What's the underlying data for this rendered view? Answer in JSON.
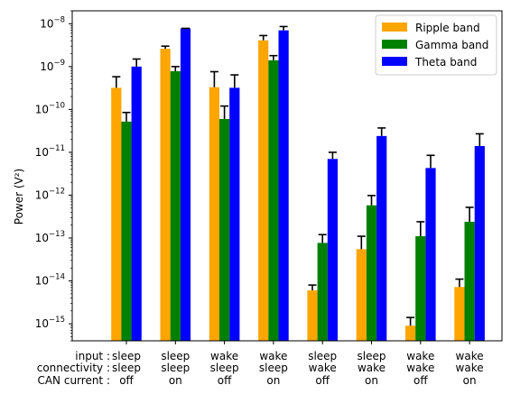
{
  "chart_data": {
    "type": "bar",
    "yscale": "log",
    "ylabel": "Power (V²)",
    "ylim": [
      4e-16,
      2e-08
    ],
    "yticks": [
      {
        "exp": -15,
        "label_base": "10",
        "label_exp": "−15"
      },
      {
        "exp": -14,
        "label_base": "10",
        "label_exp": "−14"
      },
      {
        "exp": -13,
        "label_base": "10",
        "label_exp": "−13"
      },
      {
        "exp": -12,
        "label_base": "10",
        "label_exp": "−12"
      },
      {
        "exp": -11,
        "label_base": "10",
        "label_exp": "−11"
      },
      {
        "exp": -10,
        "label_base": "10",
        "label_exp": "−10"
      },
      {
        "exp": -9,
        "label_base": "10",
        "label_exp": "−9"
      },
      {
        "exp": -8,
        "label_base": "10",
        "label_exp": "−8"
      }
    ],
    "row_headers": [
      "input :",
      "connectivity :",
      "CAN current :"
    ],
    "categories": [
      [
        "sleep",
        "sleep",
        "off"
      ],
      [
        "sleep",
        "sleep",
        "on"
      ],
      [
        "wake",
        "sleep",
        "off"
      ],
      [
        "wake",
        "sleep",
        "on"
      ],
      [
        "sleep",
        "wake",
        "off"
      ],
      [
        "sleep",
        "wake",
        "on"
      ],
      [
        "wake",
        "wake",
        "off"
      ],
      [
        "wake",
        "wake",
        "on"
      ]
    ],
    "series": [
      {
        "name": "Ripple band",
        "color": "#FFA500",
        "values": [
          3.2e-10,
          2.6e-09,
          3.3e-10,
          4.1e-09,
          6e-15,
          5.5e-14,
          9e-16,
          7.2e-15
        ],
        "err_upper": [
          5.8e-10,
          3e-09,
          7.6e-10,
          5.3e-09,
          8e-15,
          1.1e-13,
          1.4e-15,
          1.1e-14
        ]
      },
      {
        "name": "Gamma band",
        "color": "#008000",
        "values": [
          5.2e-11,
          7.8e-10,
          6e-11,
          1.4e-09,
          7.7e-14,
          5.8e-13,
          1.1e-13,
          2.4e-13
        ],
        "err_upper": [
          8.5e-11,
          1e-09,
          1.2e-10,
          1.8e-09,
          1.2e-13,
          9.8e-13,
          2.4e-13,
          5.2e-13
        ]
      },
      {
        "name": "Theta band",
        "color": "#0000FF",
        "values": [
          1e-09,
          7.8e-09,
          3.2e-10,
          7e-09,
          7e-12,
          2.4e-11,
          4.3e-12,
          1.4e-11
        ],
        "err_upper": [
          1.5e-09,
          7.8e-09,
          6.4e-10,
          8.6e-09,
          1e-11,
          3.7e-11,
          8.5e-12,
          2.7e-11
        ]
      }
    ],
    "legend_position": "top-right",
    "grid": false
  }
}
